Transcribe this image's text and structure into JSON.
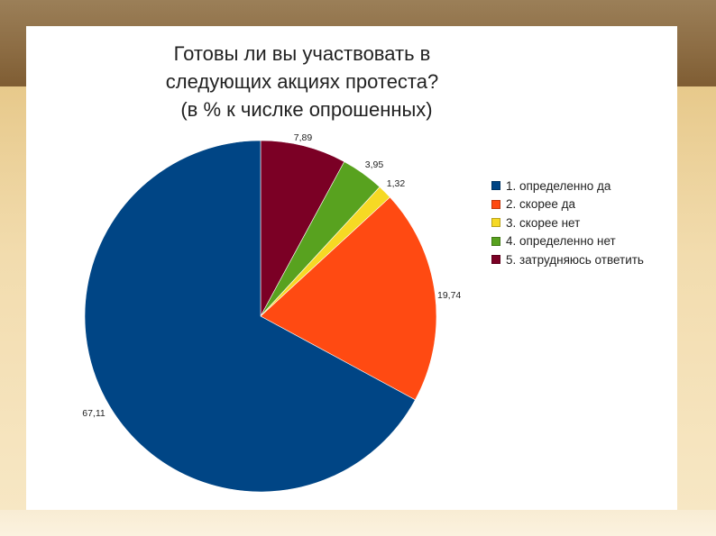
{
  "chart_data": {
    "type": "pie",
    "title_lines": [
      "Готовы ли вы участвовать в",
      "следующих акциях протеста?",
      "(в % к числке опрошенных)"
    ],
    "slices": [
      {
        "label": "5. затрудняюсь ответить",
        "value": 7.89,
        "value_label": "7,89",
        "color": "#7b0025"
      },
      {
        "label": "4. определенно нет",
        "value": 3.95,
        "value_label": "3,95",
        "color": "#58a21f"
      },
      {
        "label": "3. скорее нет",
        "value": 1.32,
        "value_label": "1,32",
        "color": "#f6d924"
      },
      {
        "label": "2. скорее да",
        "value": 19.74,
        "value_label": "19,74",
        "color": "#ff4a12"
      },
      {
        "label": "1. определенно да",
        "value": 67.11,
        "value_label": "67,11",
        "color": "#004585"
      }
    ],
    "legend": [
      {
        "label": "1. определенно да",
        "color": "#004585"
      },
      {
        "label": "2. скорее да",
        "color": "#ff4a12"
      },
      {
        "label": "3. скорее нет",
        "color": "#f6d924"
      },
      {
        "label": "4. определенно нет",
        "color": "#58a21f"
      },
      {
        "label": "5. затрудняюсь ответить",
        "color": "#7b0025"
      }
    ],
    "legend_position": "right",
    "start": "12 o'clock",
    "direction": "clockwise"
  }
}
